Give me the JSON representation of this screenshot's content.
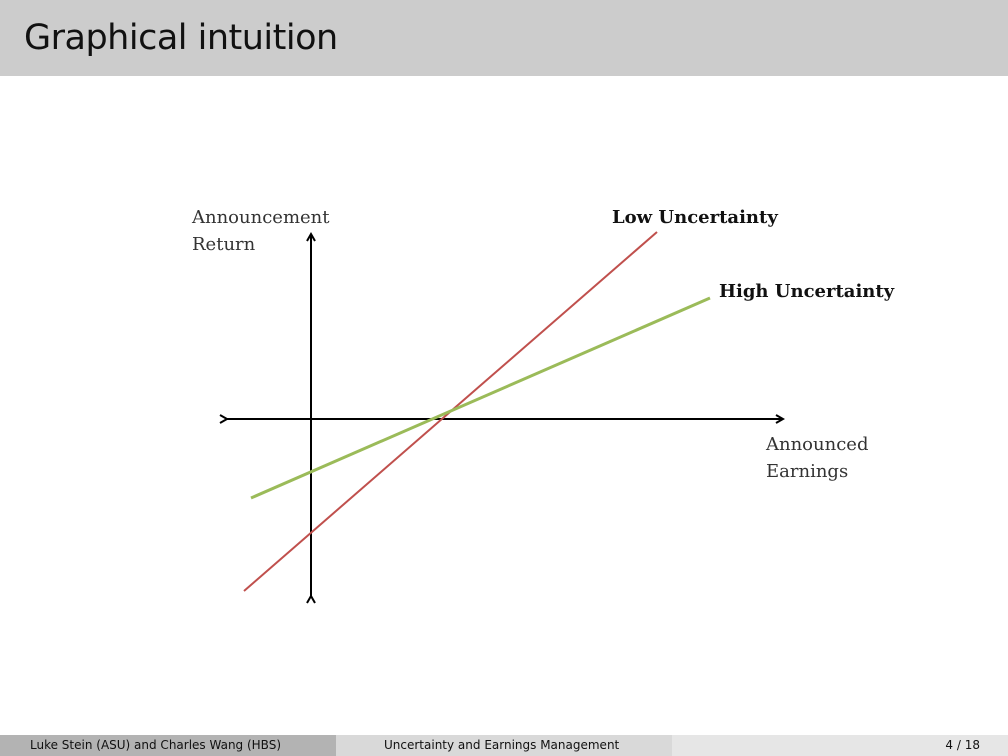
{
  "slide": {
    "title": "Graphical intuition"
  },
  "diagram": {
    "y_axis_label_line1": "Announcement",
    "y_axis_label_line2": "Return",
    "x_axis_label_line1": "Announced",
    "x_axis_label_line2": "Earnings",
    "series": [
      {
        "name": "Low Uncertainty",
        "color": "#c0504d"
      },
      {
        "name": "High Uncertainty",
        "color": "#9bbb59"
      }
    ]
  },
  "footer": {
    "authors": "Luke Stein (ASU) and Charles Wang (HBS)",
    "talk_title": "Uncertainty and Earnings Management",
    "page": "4 / 18"
  }
}
